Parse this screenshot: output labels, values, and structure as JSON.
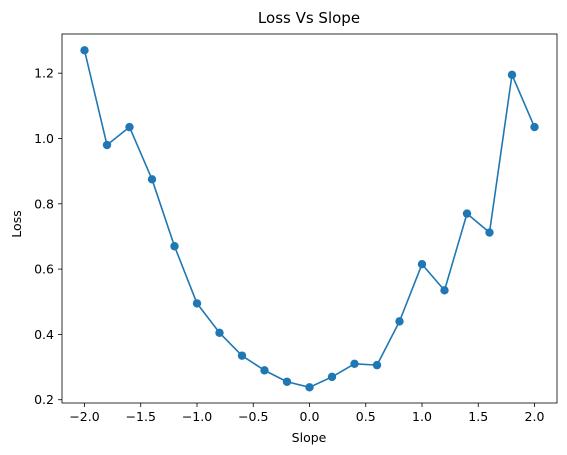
{
  "chart_data": {
    "type": "line",
    "title": "Loss Vs Slope",
    "xlabel": "Slope",
    "ylabel": "Loss",
    "xlim": [
      -2.2,
      2.2
    ],
    "ylim": [
      0.19,
      1.32
    ],
    "xticks": [
      -2.0,
      -1.5,
      -1.0,
      -0.5,
      0.0,
      0.5,
      1.0,
      1.5,
      2.0
    ],
    "xtick_labels": [
      "−2.0",
      "−1.5",
      "−1.0",
      "−0.5",
      "0.0",
      "0.5",
      "1.0",
      "1.5",
      "2.0"
    ],
    "yticks": [
      0.2,
      0.4,
      0.6,
      0.8,
      1.0,
      1.2
    ],
    "ytick_labels": [
      "0.2",
      "0.4",
      "0.6",
      "0.8",
      "1.0",
      "1.2"
    ],
    "grid": false,
    "series": [
      {
        "color": "#1f77b4",
        "marker": "circle",
        "x": [
          -2.0,
          -1.8,
          -1.6,
          -1.4,
          -1.2,
          -1.0,
          -0.8,
          -0.6,
          -0.4,
          -0.2,
          0.0,
          0.2,
          0.4,
          0.6,
          0.8,
          1.0,
          1.2,
          1.4,
          1.6,
          1.8,
          2.0
        ],
        "y": [
          1.27,
          0.98,
          1.035,
          0.875,
          0.67,
          0.495,
          0.405,
          0.335,
          0.29,
          0.255,
          0.238,
          0.27,
          0.31,
          0.306,
          0.44,
          0.615,
          0.535,
          0.77,
          0.712,
          1.195,
          1.035
        ]
      }
    ]
  }
}
